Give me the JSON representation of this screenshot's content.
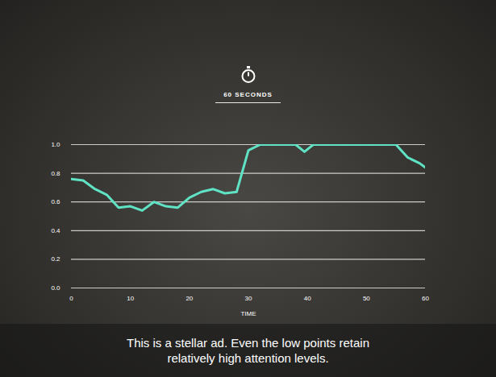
{
  "chart_data": {
    "type": "line",
    "title": "60 SECONDS",
    "caption": "This is a stellar ad. Even the low points retain relatively high attention levels.",
    "x_label": "TIME",
    "x": [
      0,
      2,
      4,
      6,
      8,
      10,
      12,
      14,
      16,
      18,
      20,
      22,
      24,
      26,
      28,
      30,
      32,
      34,
      36,
      38,
      39.5,
      41,
      44,
      48,
      52,
      55,
      57,
      59,
      60
    ],
    "values": [
      0.76,
      0.75,
      0.69,
      0.65,
      0.56,
      0.57,
      0.54,
      0.6,
      0.57,
      0.56,
      0.63,
      0.67,
      0.69,
      0.66,
      0.67,
      0.96,
      1.0,
      1.0,
      1.0,
      1.0,
      0.95,
      1.0,
      1.0,
      1.0,
      1.0,
      1.0,
      0.91,
      0.87,
      0.84
    ],
    "color": "#5fe3c4",
    "xlim": [
      0,
      60
    ],
    "xticks": [
      0,
      10,
      20,
      30,
      40,
      50,
      60
    ],
    "ylim": [
      0,
      1
    ],
    "yticks": [
      {
        "value": 0,
        "label": "0.0"
      },
      {
        "value": 0.2,
        "label": "0.2"
      },
      {
        "value": 0.4,
        "label": "0.4"
      },
      {
        "value": 0.6,
        "label": "0.6"
      },
      {
        "value": 0.8,
        "label": "0.8"
      },
      {
        "value": 1,
        "label": "1.0"
      }
    ],
    "grid": true
  }
}
